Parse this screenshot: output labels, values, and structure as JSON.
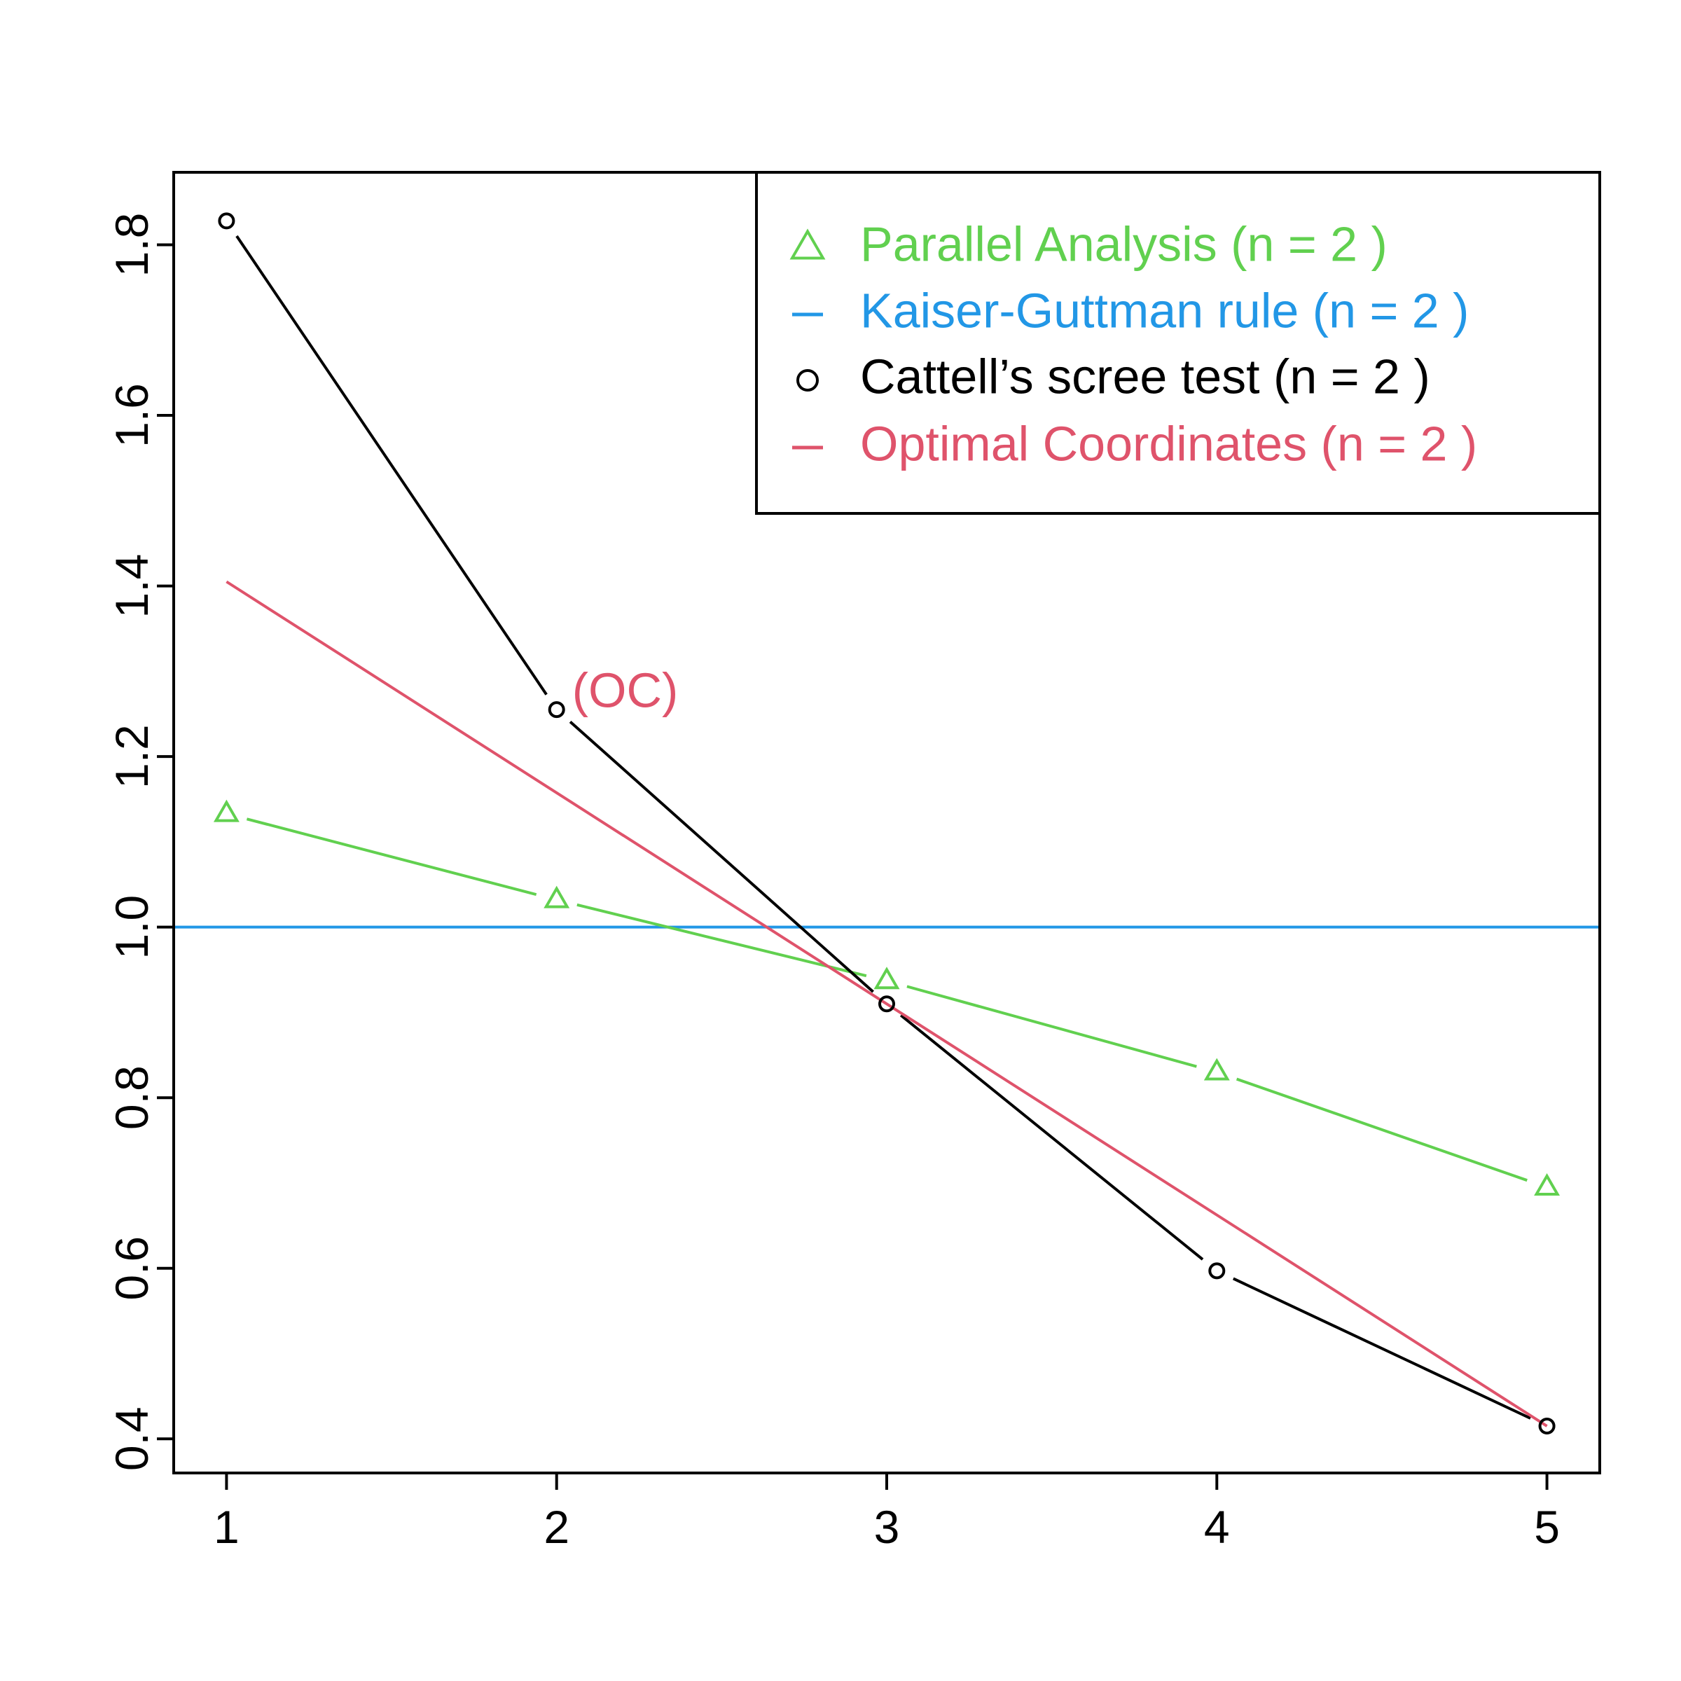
{
  "chart_data": {
    "type": "line",
    "title": "",
    "xlabel": "",
    "ylabel": "",
    "xlim": [
      0.84,
      5.16
    ],
    "ylim": [
      0.36,
      1.885
    ],
    "x_ticks": [
      1,
      2,
      3,
      4,
      5
    ],
    "x_tick_labels": [
      "1",
      "2",
      "3",
      "4",
      "5"
    ],
    "y_ticks": [
      0.4,
      0.6,
      0.8,
      1.0,
      1.2,
      1.4,
      1.6,
      1.8
    ],
    "y_tick_labels": [
      "0.4",
      "0.6",
      "0.8",
      "1.0",
      "1.2",
      "1.4",
      "1.6",
      "1.8"
    ],
    "grid": false,
    "legend_position": "top-right",
    "series": [
      {
        "key": "parallel",
        "name": "Parallel Analysis (n =  2 )",
        "color": "#61D04F",
        "marker": "triangle",
        "line": true,
        "x": [
          1,
          2,
          3,
          4,
          5
        ],
        "y": [
          1.133,
          1.032,
          0.937,
          0.83,
          0.695
        ]
      },
      {
        "key": "kaiser",
        "name": "Kaiser-Guttman rule (n =  2 )",
        "color": "#2297E6",
        "marker": "dash",
        "line": true,
        "hline": 1.0
      },
      {
        "key": "cattell",
        "name": "Cattell’s scree test (n =  2 )",
        "color": "#000000",
        "marker": "circle",
        "line": true,
        "x": [
          1,
          2,
          3,
          4,
          5
        ],
        "y": [
          1.828,
          1.255,
          0.91,
          0.597,
          0.415
        ]
      },
      {
        "key": "oc",
        "name": "Optimal Coordinates (n =  2 )",
        "color": "#DF536B",
        "marker": "dash",
        "line": true,
        "x": [
          1,
          5
        ],
        "y": [
          1.405,
          0.415
        ]
      }
    ],
    "annotations": [
      {
        "text": "(OC)",
        "x": 2,
        "y": 1.255,
        "color": "#DF536B"
      }
    ]
  }
}
